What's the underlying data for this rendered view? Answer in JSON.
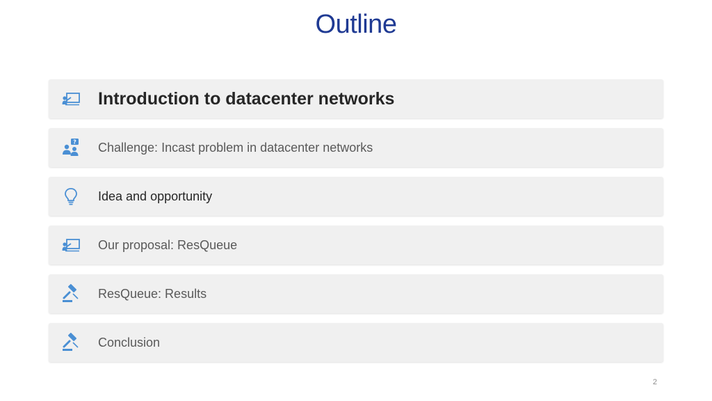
{
  "slide": {
    "title": "Outline",
    "page_number": "2"
  },
  "outline": {
    "items": [
      {
        "label": "Introduction to datacenter networks",
        "icon": "presentation-icon"
      },
      {
        "label": "Challenge: Incast problem in datacenter networks",
        "icon": "question-group-icon"
      },
      {
        "label": "Idea and opportunity",
        "icon": "lightbulb-icon"
      },
      {
        "label": "Our proposal: ResQueue",
        "icon": "presentation-icon"
      },
      {
        "label": "ResQueue: Results",
        "icon": "gavel-icon"
      },
      {
        "label": "Conclusion",
        "icon": "gavel-icon"
      }
    ]
  },
  "colors": {
    "title": "#1f3a93",
    "icon": "#4a8fd4",
    "item_background": "#f0f0f0"
  }
}
